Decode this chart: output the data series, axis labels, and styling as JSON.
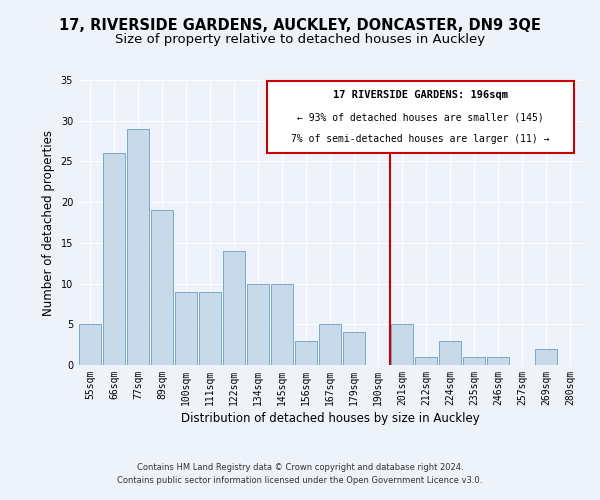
{
  "title": "17, RIVERSIDE GARDENS, AUCKLEY, DONCASTER, DN9 3QE",
  "subtitle": "Size of property relative to detached houses in Auckley",
  "xlabel": "Distribution of detached houses by size in Auckley",
  "ylabel": "Number of detached properties",
  "bar_labels": [
    "55sqm",
    "66sqm",
    "77sqm",
    "89sqm",
    "100sqm",
    "111sqm",
    "122sqm",
    "134sqm",
    "145sqm",
    "156sqm",
    "167sqm",
    "179sqm",
    "190sqm",
    "201sqm",
    "212sqm",
    "224sqm",
    "235sqm",
    "246sqm",
    "257sqm",
    "269sqm",
    "280sqm"
  ],
  "bar_values": [
    5,
    26,
    29,
    19,
    9,
    9,
    14,
    10,
    10,
    3,
    5,
    4,
    0,
    5,
    1,
    3,
    1,
    1,
    0,
    2,
    0
  ],
  "bar_color": "#c8d9ea",
  "bar_edge_color": "#7aaac8",
  "ylim": [
    0,
    35
  ],
  "yticks": [
    0,
    5,
    10,
    15,
    20,
    25,
    30,
    35
  ],
  "vline_color": "#cc0000",
  "annotation_title": "17 RIVERSIDE GARDENS: 196sqm",
  "annotation_line1": "← 93% of detached houses are smaller (145)",
  "annotation_line2": "7% of semi-detached houses are larger (11) →",
  "annotation_box_color": "#cc0000",
  "footer_line1": "Contains HM Land Registry data © Crown copyright and database right 2024.",
  "footer_line2": "Contains public sector information licensed under the Open Government Licence v3.0.",
  "background_color": "#eef2fb",
  "grid_color": "#ffffff",
  "title_fontsize": 10.5,
  "subtitle_fontsize": 9.5,
  "axis_label_fontsize": 8.5,
  "tick_fontsize": 7,
  "footer_fontsize": 6
}
